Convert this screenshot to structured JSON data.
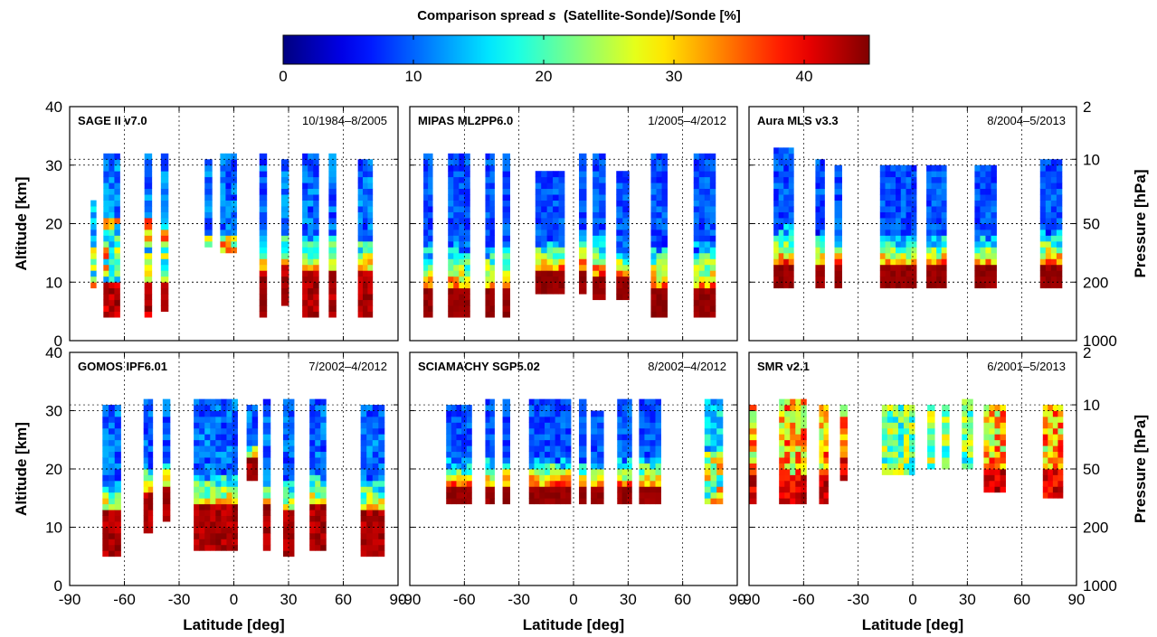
{
  "chart_data": {
    "type": "heatmap",
    "colorbar": {
      "title_plain": "Comparison spread ",
      "title_symbol": "s",
      "title_rest": "(Satellite-Sonde)/Sonde [%]",
      "range": [
        0,
        45
      ],
      "ticks": [
        0,
        10,
        20,
        30,
        40
      ],
      "tick_labels": [
        "0",
        "10",
        "20",
        "30",
        "40"
      ],
      "colormap": "jet"
    },
    "x_axis": {
      "label": "Latitude [deg]",
      "range": [
        -90,
        90
      ],
      "ticks": [
        -90,
        -60,
        -30,
        0,
        30,
        60,
        90
      ],
      "tick_labels": [
        "-90",
        "-60",
        "-30",
        "0",
        "30",
        "60",
        "90"
      ]
    },
    "y_axis": {
      "label": "Altitude [km]",
      "range": [
        0,
        40
      ],
      "ticks": [
        0,
        10,
        20,
        30,
        40
      ],
      "tick_labels": [
        "0",
        "10",
        "20",
        "30",
        "40"
      ]
    },
    "y2_axis": {
      "label": "Pressure [hPa]",
      "tick_labels": [
        "2",
        "10",
        "50",
        "200",
        "1000"
      ],
      "tick_altitudes_km": [
        40,
        31,
        20,
        10,
        0
      ]
    },
    "panels": [
      {
        "instrument": "SAGE II v7.0",
        "period": "10/1984–8/2005",
        "columns": [
          {
            "lat": -77,
            "width": 3,
            "bottom": 9,
            "top": 24,
            "profile": "upper_mixed"
          },
          {
            "lat": -67,
            "width": 9,
            "bottom": 4,
            "top": 32,
            "profile": "mixed_low_red"
          },
          {
            "lat": -47,
            "width": 4,
            "bottom": 4,
            "top": 32,
            "profile": "mixed_low_red"
          },
          {
            "lat": -38,
            "width": 4,
            "bottom": 5,
            "top": 32,
            "profile": "mixed_low_red"
          },
          {
            "lat": -14,
            "width": 4,
            "bottom": 16,
            "top": 31,
            "profile": "blue_mixed_bottom"
          },
          {
            "lat": -3,
            "width": 9,
            "bottom": 15,
            "top": 32,
            "profile": "blue_mixed_bottom"
          },
          {
            "lat": 16,
            "width": 4,
            "bottom": 4,
            "top": 32,
            "profile": "blue_to_red"
          },
          {
            "lat": 28,
            "width": 4,
            "bottom": 6,
            "top": 31,
            "profile": "blue_to_red"
          },
          {
            "lat": 42,
            "width": 9,
            "bottom": 4,
            "top": 32,
            "profile": "blue_to_red"
          },
          {
            "lat": 54,
            "width": 4,
            "bottom": 4,
            "top": 32,
            "profile": "blue_to_red"
          },
          {
            "lat": 72,
            "width": 8,
            "bottom": 4,
            "top": 31,
            "profile": "blue_to_red"
          }
        ]
      },
      {
        "instrument": "MIPAS ML2PP6.0",
        "period": "1/2005–4/2012",
        "columns": [
          {
            "lat": -80,
            "width": 5,
            "bottom": 4,
            "top": 32,
            "profile": "blue_mid_red_bottom"
          },
          {
            "lat": -63,
            "width": 12,
            "bottom": 4,
            "top": 32,
            "profile": "blue_mid_red_bottom"
          },
          {
            "lat": -46,
            "width": 5,
            "bottom": 4,
            "top": 32,
            "profile": "blue_mid_red_bottom"
          },
          {
            "lat": -37,
            "width": 4,
            "bottom": 4,
            "top": 32,
            "profile": "blue_mid_red_bottom"
          },
          {
            "lat": -13,
            "width": 16,
            "bottom": 8,
            "top": 29,
            "profile": "blue_mid_red_bottom"
          },
          {
            "lat": 5,
            "width": 4,
            "bottom": 8,
            "top": 32,
            "profile": "blue_mid_red_bottom"
          },
          {
            "lat": 14,
            "width": 7,
            "bottom": 7,
            "top": 32,
            "profile": "blue_mid_red_bottom"
          },
          {
            "lat": 27,
            "width": 7,
            "bottom": 7,
            "top": 29,
            "profile": "blue_mid_red_bottom"
          },
          {
            "lat": 47,
            "width": 9,
            "bottom": 4,
            "top": 32,
            "profile": "blue_mid_red_bottom"
          },
          {
            "lat": 72,
            "width": 12,
            "bottom": 4,
            "top": 32,
            "profile": "blue_mid_red_bottom"
          }
        ]
      },
      {
        "instrument": "Aura MLS v3.3",
        "period": "8/2004–5/2013",
        "columns": [
          {
            "lat": -71,
            "width": 11,
            "bottom": 9,
            "top": 33,
            "profile": "blue_mid_red_bottom"
          },
          {
            "lat": -51,
            "width": 5,
            "bottom": 9,
            "top": 31,
            "profile": "blue_mid_red_bottom"
          },
          {
            "lat": -41,
            "width": 4,
            "bottom": 9,
            "top": 30,
            "profile": "blue_mid_red_bottom"
          },
          {
            "lat": -8,
            "width": 20,
            "bottom": 9,
            "top": 30,
            "profile": "blue_mid_red_bottom"
          },
          {
            "lat": 13,
            "width": 11,
            "bottom": 9,
            "top": 30,
            "profile": "blue_mid_red_bottom"
          },
          {
            "lat": 40,
            "width": 12,
            "bottom": 9,
            "top": 30,
            "profile": "blue_mid_red_bottom"
          },
          {
            "lat": 76,
            "width": 12,
            "bottom": 9,
            "top": 31,
            "profile": "blue_mid_red_bottom"
          }
        ]
      },
      {
        "instrument": "GOMOS IPF6.01",
        "period": "7/2002–4/2012",
        "columns": [
          {
            "lat": -67,
            "width": 10,
            "bottom": 5,
            "top": 31,
            "profile": "blue_to_red"
          },
          {
            "lat": -47,
            "width": 5,
            "bottom": 9,
            "top": 32,
            "profile": "blue_to_red"
          },
          {
            "lat": -37,
            "width": 4,
            "bottom": 11,
            "top": 32,
            "profile": "blue_to_red"
          },
          {
            "lat": -10,
            "width": 24,
            "bottom": 6,
            "top": 32,
            "profile": "blue_to_red"
          },
          {
            "lat": 10,
            "width": 6,
            "bottom": 18,
            "top": 31,
            "profile": "blue_to_red"
          },
          {
            "lat": 18,
            "width": 4,
            "bottom": 6,
            "top": 32,
            "profile": "blue_to_red"
          },
          {
            "lat": 30,
            "width": 6,
            "bottom": 5,
            "top": 32,
            "profile": "blue_to_red"
          },
          {
            "lat": 46,
            "width": 9,
            "bottom": 6,
            "top": 32,
            "profile": "blue_to_red"
          },
          {
            "lat": 76,
            "width": 13,
            "bottom": 5,
            "top": 31,
            "profile": "blue_to_red"
          }
        ]
      },
      {
        "instrument": "SCIAMACHY SGP5.02",
        "period": "8/2002–4/2012",
        "columns": [
          {
            "lat": -63,
            "width": 14,
            "bottom": 14,
            "top": 31,
            "profile": "blue_mid_red_bottom"
          },
          {
            "lat": -46,
            "width": 5,
            "bottom": 14,
            "top": 32,
            "profile": "blue_mid_red_bottom"
          },
          {
            "lat": -37,
            "width": 4,
            "bottom": 14,
            "top": 32,
            "profile": "blue_mid_red_bottom"
          },
          {
            "lat": -13,
            "width": 23,
            "bottom": 14,
            "top": 32,
            "profile": "blue_mid_red_bottom"
          },
          {
            "lat": 5,
            "width": 4,
            "bottom": 14,
            "top": 32,
            "profile": "blue_mid_red_bottom"
          },
          {
            "lat": 13,
            "width": 7,
            "bottom": 14,
            "top": 30,
            "profile": "blue_mid_red_bottom"
          },
          {
            "lat": 28,
            "width": 8,
            "bottom": 14,
            "top": 32,
            "profile": "blue_mid_red_bottom"
          },
          {
            "lat": 42,
            "width": 12,
            "bottom": 14,
            "top": 32,
            "profile": "blue_mid_red_bottom"
          },
          {
            "lat": 77,
            "width": 10,
            "bottom": 14,
            "top": 32,
            "profile": "mixed_mid"
          }
        ]
      },
      {
        "instrument": "SMR v2.1",
        "period": "6/2001–5/2013",
        "columns": [
          {
            "lat": -88,
            "width": 4,
            "bottom": 14,
            "top": 31,
            "profile": "warm"
          },
          {
            "lat": -66,
            "width": 15,
            "bottom": 14,
            "top": 32,
            "profile": "warm"
          },
          {
            "lat": -49,
            "width": 5,
            "bottom": 14,
            "top": 31,
            "profile": "warm"
          },
          {
            "lat": -38,
            "width": 4,
            "bottom": 18,
            "top": 31,
            "profile": "warm"
          },
          {
            "lat": -8,
            "width": 18,
            "bottom": 19,
            "top": 31,
            "profile": "cyan_mixed"
          },
          {
            "lat": 10,
            "width": 4,
            "bottom": 20,
            "top": 31,
            "profile": "cyan_mixed"
          },
          {
            "lat": 18,
            "width": 4,
            "bottom": 20,
            "top": 31,
            "profile": "cyan_mixed"
          },
          {
            "lat": 30,
            "width": 6,
            "bottom": 20,
            "top": 32,
            "profile": "cyan_mixed"
          },
          {
            "lat": 45,
            "width": 12,
            "bottom": 16,
            "top": 31,
            "profile": "warm"
          },
          {
            "lat": 77,
            "width": 11,
            "bottom": 15,
            "top": 31,
            "profile": "warm"
          }
        ]
      }
    ]
  }
}
